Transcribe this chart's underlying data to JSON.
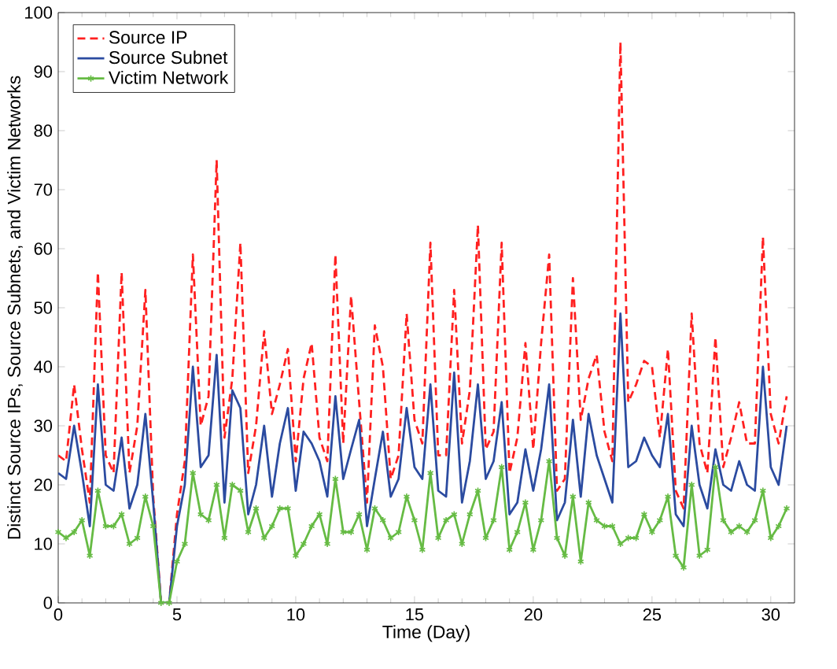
{
  "chart_data": {
    "type": "line",
    "xlabel": "Time (Day)",
    "ylabel": "Distinct Source IPs, Source Subnets, and Victim Networks",
    "x": [
      0,
      0.33,
      0.67,
      1,
      1.33,
      1.67,
      2,
      2.33,
      2.67,
      3,
      3.33,
      3.67,
      4,
      4.33,
      4.67,
      5,
      5.33,
      5.67,
      6,
      6.33,
      6.67,
      7,
      7.33,
      7.67,
      8,
      8.33,
      8.67,
      9,
      9.33,
      9.67,
      10,
      10.33,
      10.67,
      11,
      11.33,
      11.67,
      12,
      12.33,
      12.67,
      13,
      13.33,
      13.67,
      14,
      14.33,
      14.67,
      15,
      15.33,
      15.67,
      16,
      16.33,
      16.67,
      17,
      17.33,
      17.67,
      18,
      18.33,
      18.67,
      19,
      19.33,
      19.67,
      20,
      20.33,
      20.67,
      21,
      21.33,
      21.67,
      22,
      22.33,
      22.67,
      23,
      23.33,
      23.67,
      24,
      24.33,
      24.67,
      25,
      25.33,
      25.67,
      26,
      26.33,
      26.67,
      27,
      27.33,
      27.67,
      28,
      28.33,
      28.67,
      29,
      29.33,
      29.67,
      30,
      30.33,
      30.67
    ],
    "series": [
      {
        "name": "Source IP",
        "color": "#ff2020",
        "line_style": "dashed",
        "marker": "none",
        "values": [
          25,
          24,
          37,
          26,
          17,
          56,
          25,
          22,
          56,
          22,
          30,
          53,
          18,
          0,
          0,
          15,
          24,
          59,
          30,
          35,
          75,
          28,
          38,
          61,
          22,
          30,
          46,
          32,
          37,
          43,
          24,
          38,
          44,
          28,
          24,
          59,
          27,
          52,
          34,
          17,
          47,
          40,
          21,
          25,
          49,
          31,
          27,
          61,
          25,
          25,
          53,
          27,
          36,
          64,
          26,
          29,
          61,
          22,
          28,
          44,
          26,
          44,
          59,
          19,
          21,
          55,
          31,
          38,
          42,
          29,
          24,
          95,
          34,
          37,
          41,
          40,
          28,
          43,
          19,
          16,
          49,
          27,
          22,
          45,
          23,
          28,
          34,
          27,
          27,
          62,
          32,
          27,
          35
        ]
      },
      {
        "name": "Source Subnet",
        "color": "#2b4ba0",
        "line_style": "solid",
        "marker": "none",
        "values": [
          22,
          21,
          30,
          22,
          13,
          37,
          20,
          19,
          28,
          16,
          20,
          32,
          17,
          0,
          0,
          13,
          20,
          40,
          23,
          25,
          42,
          17,
          36,
          33,
          15,
          20,
          30,
          18,
          27,
          33,
          19,
          29,
          27,
          24,
          18,
          35,
          21,
          26,
          31,
          13,
          21,
          29,
          18,
          21,
          33,
          23,
          21,
          37,
          19,
          18,
          39,
          17,
          24,
          37,
          21,
          24,
          34,
          15,
          17,
          26,
          19,
          26,
          37,
          14,
          17,
          31,
          18,
          32,
          25,
          21,
          17,
          49,
          23,
          24,
          28,
          25,
          23,
          32,
          15,
          13,
          30,
          20,
          16,
          26,
          20,
          19,
          24,
          20,
          19,
          40,
          23,
          20,
          30
        ]
      },
      {
        "name": "Victim Network",
        "color": "#66bb44",
        "line_style": "solid",
        "marker": "cross",
        "values": [
          12,
          11,
          12,
          14,
          8,
          19,
          13,
          13,
          15,
          10,
          11,
          18,
          13,
          0,
          0,
          7,
          10,
          22,
          15,
          14,
          20,
          11,
          20,
          19,
          12,
          16,
          11,
          13,
          16,
          16,
          8,
          10,
          13,
          15,
          10,
          21,
          12,
          12,
          15,
          9,
          16,
          14,
          11,
          12,
          18,
          14,
          9,
          22,
          11,
          14,
          15,
          10,
          15,
          19,
          11,
          14,
          23,
          9,
          12,
          17,
          9,
          14,
          24,
          11,
          8,
          18,
          7,
          17,
          14,
          13,
          13,
          10,
          11,
          11,
          15,
          12,
          14,
          18,
          8,
          6,
          20,
          8,
          9,
          23,
          14,
          12,
          13,
          12,
          14,
          19,
          11,
          13,
          16
        ]
      }
    ],
    "xlim": [
      0,
      31
    ],
    "xticks": [
      0,
      5,
      10,
      15,
      20,
      25,
      30
    ],
    "ylim": [
      0,
      100
    ],
    "yticks": [
      0,
      10,
      20,
      30,
      40,
      50,
      60,
      70,
      80,
      90,
      100
    ],
    "grid": false,
    "legend": "top left"
  }
}
